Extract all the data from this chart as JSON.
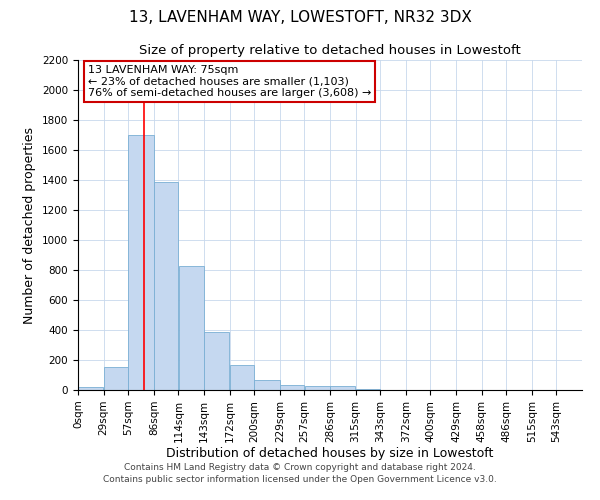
{
  "title": "13, LAVENHAM WAY, LOWESTOFT, NR32 3DX",
  "subtitle": "Size of property relative to detached houses in Lowestoft",
  "xlabel": "Distribution of detached houses by size in Lowestoft",
  "ylabel": "Number of detached properties",
  "bar_color": "#c5d8f0",
  "bar_edge_color": "#7aafd4",
  "background_color": "#ffffff",
  "grid_color": "#c8d8ec",
  "vline_color": "#ff0000",
  "vline_x": 75,
  "annotation_title": "13 LAVENHAM WAY: 75sqm",
  "annotation_line2": "← 23% of detached houses are smaller (1,103)",
  "annotation_line3": "76% of semi-detached houses are larger (3,608) →",
  "annotation_box_color": "#ffffff",
  "annotation_box_edge": "#cc0000",
  "bin_edges": [
    0,
    29,
    57,
    86,
    114,
    143,
    172,
    200,
    229,
    257,
    286,
    315,
    343,
    372,
    400,
    429,
    458,
    486,
    515,
    543,
    572
  ],
  "bin_counts": [
    20,
    155,
    1700,
    1390,
    825,
    385,
    165,
    65,
    35,
    25,
    25,
    5,
    0,
    0,
    0,
    0,
    0,
    0,
    0,
    0
  ],
  "ylim": [
    0,
    2200
  ],
  "yticks": [
    0,
    200,
    400,
    600,
    800,
    1000,
    1200,
    1400,
    1600,
    1800,
    2000,
    2200
  ],
  "footer_line1": "Contains HM Land Registry data © Crown copyright and database right 2024.",
  "footer_line2": "Contains public sector information licensed under the Open Government Licence v3.0.",
  "title_fontsize": 11,
  "subtitle_fontsize": 9.5,
  "axis_label_fontsize": 9,
  "tick_fontsize": 7.5,
  "footer_fontsize": 6.5,
  "annot_fontsize": 8
}
